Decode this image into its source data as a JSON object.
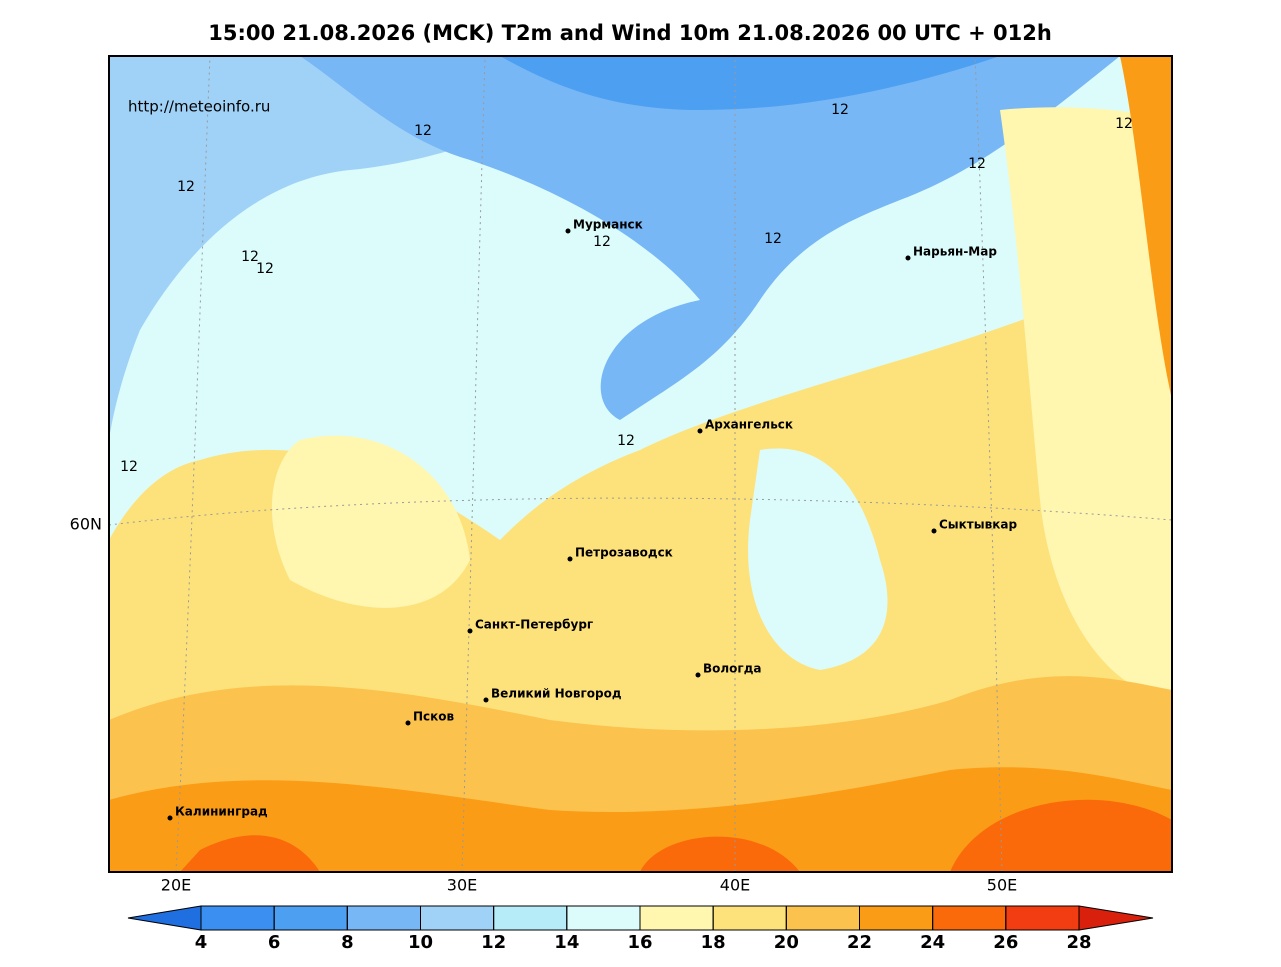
{
  "header": {
    "title": "15:00 21.08.2026 (MCK) T2m and Wind 10m 21.08.2026 00 UTC + 012h",
    "url": "http://meteoinfo.ru"
  },
  "axes": {
    "x_labels": [
      "20E",
      "30E",
      "40E",
      "50E"
    ],
    "y_labels": [
      "60N"
    ]
  },
  "cities": [
    "Мурманск",
    "Нарьян-Мар",
    "Архангельск",
    "Сыктывкар",
    "Петрозаводск",
    "Санкт-Петербург",
    "Вологда",
    "Великий Новгород",
    "Псков",
    "Калининград"
  ],
  "contour_labels": [
    "12",
    "12",
    "12",
    "12",
    "12",
    "12",
    "12",
    "12",
    "12",
    "12",
    "12"
  ],
  "colorbar": {
    "ticks": [
      4,
      6,
      8,
      10,
      12,
      14,
      16,
      18,
      20,
      22,
      24,
      26,
      28
    ],
    "under_color": "#1f6fe0",
    "over_color": "#d8200c",
    "colors": [
      "#3a8ff0",
      "#4d9ff2",
      "#78b7f5",
      "#a0d2f8",
      "#b6ecf8",
      "#dcfcfc",
      "#fff6b0",
      "#fde27c",
      "#fcc24e",
      "#fb9c16",
      "#fa6a0a",
      "#f23d12"
    ]
  }
}
